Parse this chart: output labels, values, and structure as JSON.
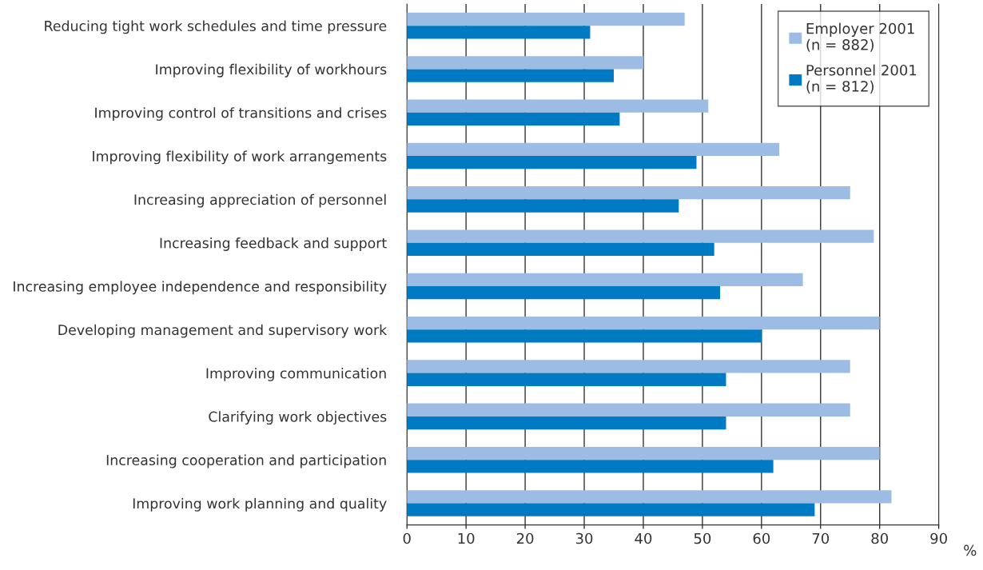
{
  "chart_data": {
    "type": "bar",
    "orientation": "horizontal",
    "xlabel": "%",
    "categories": [
      "Reducing tight work schedules and time pressure",
      "Improving flexibility of workhours",
      "Improving control of transitions and crises",
      "Improving flexibility of work arrangements",
      "Increasing appreciation of personnel",
      "Increasing feedback and support",
      "Increasing employee independence and responsibility",
      "Developing management and supervisory work",
      "Improving communication",
      "Clarifying work objectives",
      "Increasing cooperation and participation",
      "Improving work planning and quality"
    ],
    "series": [
      {
        "name": "Employer 2001\n(n = 882)",
        "color": "#9dbce3",
        "values": [
          47,
          40,
          51,
          63,
          75,
          79,
          67,
          80,
          75,
          75,
          80,
          82
        ]
      },
      {
        "name": "Personnel 2001\n(n = 812)",
        "color": "#007ac3",
        "values": [
          31,
          35,
          36,
          49,
          46,
          52,
          53,
          60,
          54,
          54,
          62,
          69
        ]
      }
    ],
    "xlim": [
      0,
      90
    ],
    "xticks": [
      0,
      10,
      20,
      30,
      40,
      50,
      60,
      70,
      80,
      90
    ],
    "grid": "x",
    "legend": "top right"
  }
}
